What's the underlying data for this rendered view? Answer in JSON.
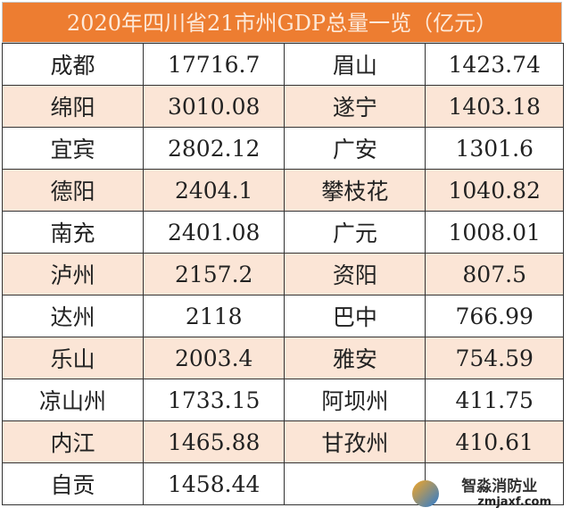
{
  "title": "2020年四川省21市州GDP总量一览（亿元）",
  "colors": {
    "header": "#ed7d31",
    "stripe": "#fbe5d6"
  },
  "rows": [
    {
      "city1": "成都",
      "gdp1": "17716.7",
      "city2": "眉山",
      "gdp2": "1423.74"
    },
    {
      "city1": "绵阳",
      "gdp1": "3010.08",
      "city2": "遂宁",
      "gdp2": "1403.18"
    },
    {
      "city1": "宜宾",
      "gdp1": "2802.12",
      "city2": "广安",
      "gdp2": "1301.6"
    },
    {
      "city1": "德阳",
      "gdp1": "2404.1",
      "city2": "攀枝花",
      "gdp2": "1040.82"
    },
    {
      "city1": "南充",
      "gdp1": "2401.08",
      "city2": "广元",
      "gdp2": "1008.01"
    },
    {
      "city1": "泸州",
      "gdp1": "2157.2",
      "city2": "资阳",
      "gdp2": "807.5"
    },
    {
      "city1": "达州",
      "gdp1": "2118",
      "city2": "巴中",
      "gdp2": "766.99"
    },
    {
      "city1": "乐山",
      "gdp1": "2003.4",
      "city2": "雅安",
      "gdp2": "754.59"
    },
    {
      "city1": "凉山州",
      "gdp1": "1733.15",
      "city2": "阿坝州",
      "gdp2": "411.75"
    },
    {
      "city1": "内江",
      "gdp1": "1465.88",
      "city2": "甘孜州",
      "gdp2": "410.61"
    },
    {
      "city1": "自贡",
      "gdp1": "1458.44",
      "city2": "",
      "gdp2": ""
    }
  ],
  "watermark": {
    "brand": "智淼消防业",
    "url": "zmjaxf.com"
  }
}
